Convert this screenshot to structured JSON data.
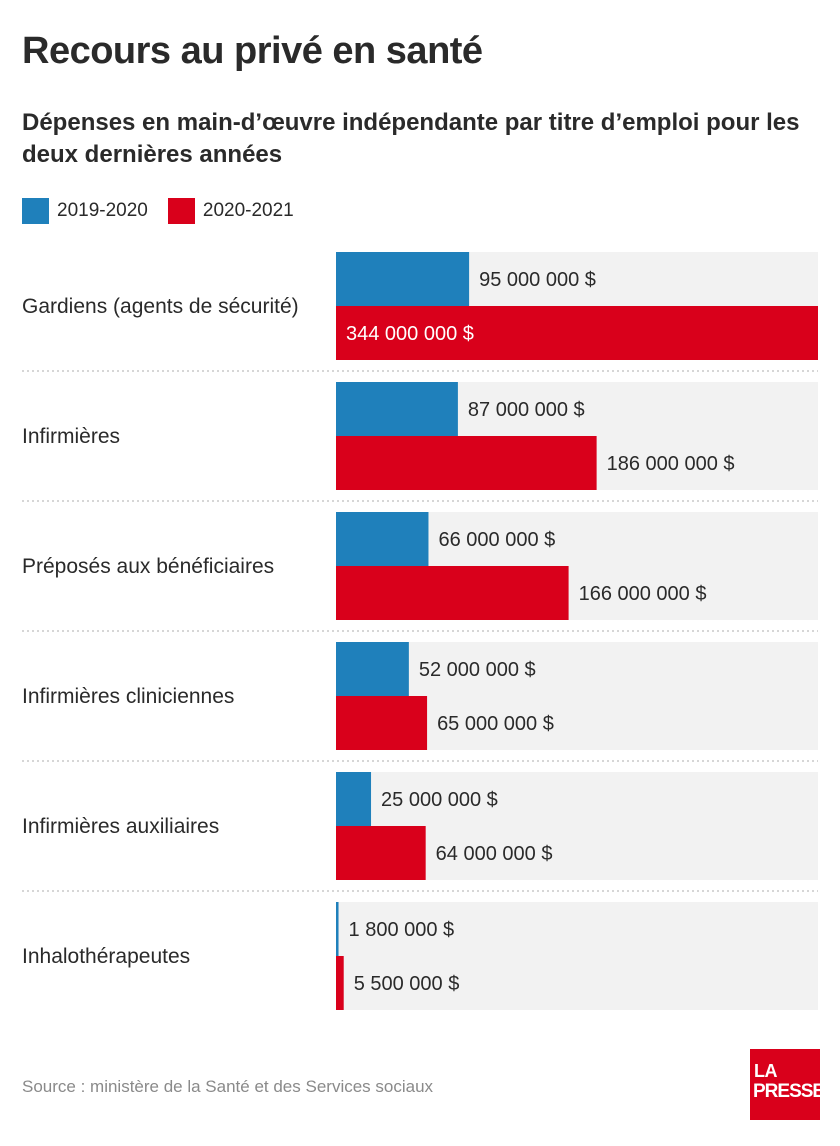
{
  "header": {
    "title": "Recours au privé en santé",
    "subtitle": "Dépenses en main-d’œuvre indépendante par titre d’emploi pour les deux dernières années"
  },
  "legend": [
    {
      "label": "2019-2020",
      "color": "#1f80bb"
    },
    {
      "label": "2020-2021",
      "color": "#d9001b"
    }
  ],
  "chart_data": {
    "type": "bar",
    "orientation": "horizontal",
    "categories": [
      "Gardiens (agents de sécurité)",
      "Infirmières",
      "Préposés aux bénéficiaires",
      "Infirmières cliniciennes",
      "Infirmières auxiliaires",
      "Inhalothérapeutes"
    ],
    "series": [
      {
        "name": "2019-2020",
        "color": "#1f80bb",
        "values": [
          95000000,
          87000000,
          66000000,
          52000000,
          25000000,
          1800000
        ],
        "labels": [
          "95 000 000 $",
          "87 000 000 $",
          "66 000 000 $",
          "52 000 000 $",
          "25 000 000 $",
          "1 800 000 $"
        ]
      },
      {
        "name": "2020-2021",
        "color": "#d9001b",
        "values": [
          344000000,
          186000000,
          166000000,
          65000000,
          64000000,
          5500000
        ],
        "labels": [
          "344 000 000 $",
          "186 000 000 $",
          "166 000 000 $",
          "65 000 000 $",
          "64 000 000 $",
          "5 500 000 $"
        ]
      }
    ],
    "xlim": [
      0,
      344000000
    ],
    "grid": false,
    "legend_position": "top-left"
  },
  "footer": {
    "source": "Source : ministère de la Santé et des Services sociaux",
    "logo_line1": "LA",
    "logo_line2": "PRESSE"
  }
}
